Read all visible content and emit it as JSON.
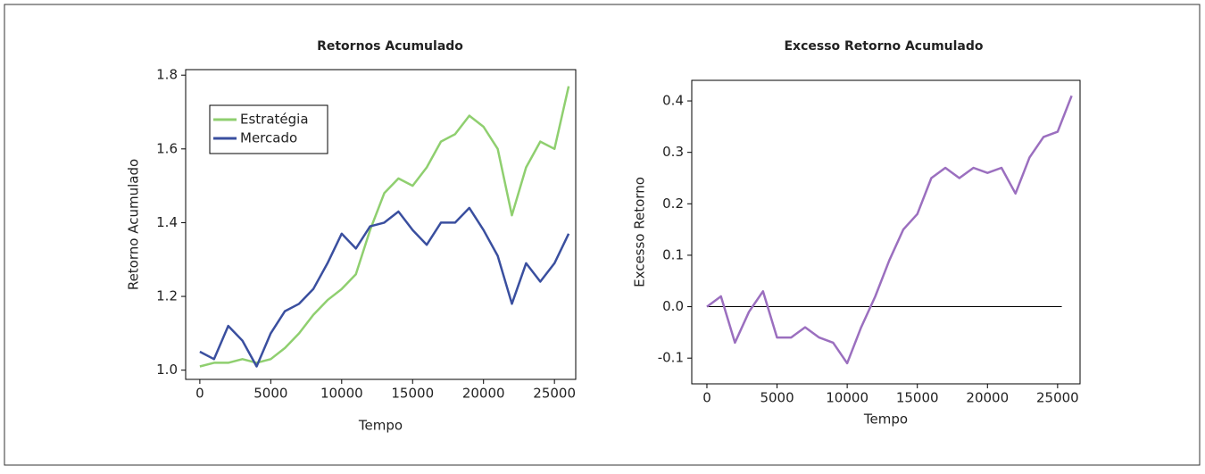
{
  "chart_data": [
    {
      "type": "line",
      "title": "Retornos Acumulado",
      "xlabel": "Tempo",
      "ylabel": "Retorno Acumulado",
      "x": [
        0,
        1000,
        2000,
        3000,
        4000,
        5000,
        6000,
        7000,
        8000,
        9000,
        10000,
        11000,
        12000,
        13000,
        14000,
        15000,
        16000,
        17000,
        18000,
        19000,
        20000,
        21000,
        22000,
        23000,
        24000,
        25000,
        26000
      ],
      "series": [
        {
          "name": "Estratégia",
          "color": "#8fcf6f",
          "values": [
            1.01,
            1.02,
            1.02,
            1.03,
            1.02,
            1.03,
            1.06,
            1.1,
            1.15,
            1.19,
            1.22,
            1.26,
            1.38,
            1.48,
            1.52,
            1.5,
            1.55,
            1.62,
            1.64,
            1.69,
            1.66,
            1.6,
            1.42,
            1.55,
            1.62,
            1.6,
            1.77
          ]
        },
        {
          "name": "Mercado",
          "color": "#3a4f9f",
          "values": [
            1.05,
            1.03,
            1.12,
            1.08,
            1.01,
            1.1,
            1.16,
            1.18,
            1.22,
            1.29,
            1.37,
            1.33,
            1.39,
            1.4,
            1.43,
            1.38,
            1.34,
            1.4,
            1.4,
            1.44,
            1.38,
            1.31,
            1.18,
            1.29,
            1.24,
            1.29,
            1.37
          ]
        }
      ],
      "xlim": [
        -1000,
        26500
      ],
      "ylim": [
        0.975,
        1.815
      ],
      "xticks": [
        0,
        5000,
        10000,
        15000,
        20000,
        25000
      ],
      "yticks": [
        {
          "value": 1.0,
          "label": "1.0"
        },
        1.2,
        1.4,
        1.6,
        1.8
      ],
      "legend": "upper-left"
    },
    {
      "type": "line",
      "title": "Excesso Retorno Acumulado",
      "xlabel": "Tempo",
      "ylabel": "Excesso Retorno",
      "x": [
        0,
        1000,
        2000,
        3000,
        4000,
        5000,
        6000,
        7000,
        8000,
        9000,
        10000,
        11000,
        12000,
        13000,
        14000,
        15000,
        16000,
        17000,
        18000,
        19000,
        20000,
        21000,
        22000,
        23000,
        24000,
        25000,
        26000
      ],
      "series": [
        {
          "color": "#9b6fbf",
          "values": [
            0.0,
            0.02,
            -0.07,
            -0.01,
            0.03,
            -0.06,
            -0.06,
            -0.04,
            -0.06,
            -0.07,
            -0.11,
            -0.04,
            0.02,
            0.09,
            0.15,
            0.18,
            0.25,
            0.27,
            0.25,
            0.27,
            0.26,
            0.27,
            0.22,
            0.29,
            0.33,
            0.34,
            0.41
          ]
        }
      ],
      "hline": {
        "y": 0,
        "xmin": 0,
        "xmax": 25300
      },
      "xlim": [
        -1080,
        26600
      ],
      "ylim": [
        -0.15,
        0.44
      ],
      "xticks": [
        0,
        5000,
        10000,
        15000,
        20000,
        25000
      ],
      "yticks": [
        {
          "value": -0.1,
          "label": "-0.1"
        },
        {
          "value": 0.0,
          "label": "0.0"
        },
        0.1,
        0.2,
        0.3,
        0.4
      ]
    }
  ]
}
